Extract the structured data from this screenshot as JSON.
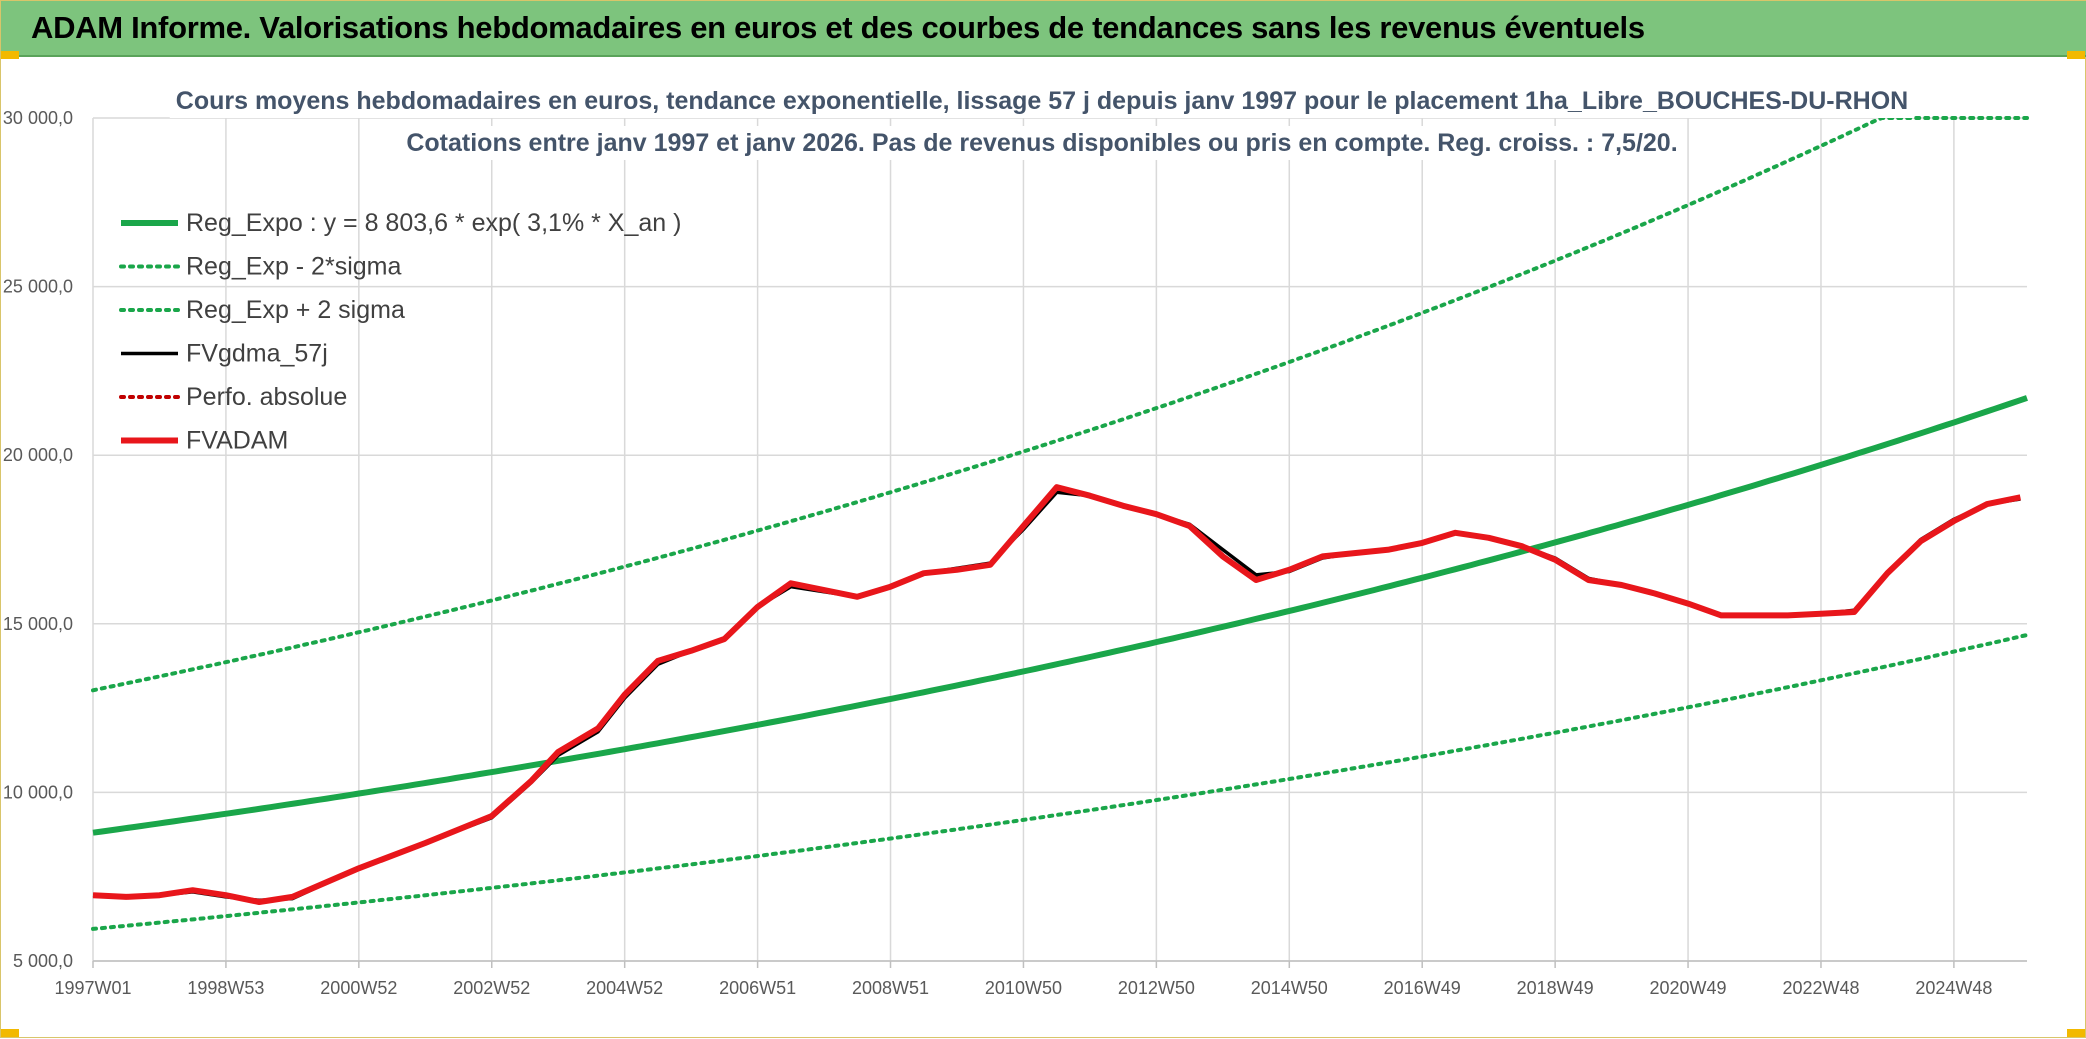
{
  "banner": {
    "title": "ADAM Informe. Valorisations hebdomadaires en euros et des courbes de tendances sans les revenus éventuels"
  },
  "colors": {
    "banner_bg": "#7dc47d",
    "trend": "#1aa64a",
    "fv": "#000000",
    "adam": "#e8161b",
    "perfo": "#c00000"
  },
  "chart_data": {
    "type": "line",
    "title": "Cours moyens hebdomadaires en euros, tendance exponentielle, lissage 57 j depuis janv 1997 pour le placement 1ha_Libre_BOUCHES-DU-RHON",
    "subtitle": "Cotations entre janv 1997 et janv 2026. Pas de revenus disponibles ou pris en compte. Reg. croiss. : 7,5/20.",
    "xlabel": "",
    "ylabel": "",
    "x_range": [
      1997.0,
      2026.1
    ],
    "ylim": [
      5000,
      30000
    ],
    "yticks": [
      5000,
      10000,
      15000,
      20000,
      25000,
      30000
    ],
    "ytick_labels": [
      "5 000,0",
      "10 000,0",
      "15 000,0",
      "20 000,0",
      "25 000,0",
      "30 000,0"
    ],
    "xticks": [
      {
        "label": "1997W01",
        "x": 1997.0
      },
      {
        "label": "1998W53",
        "x": 1999.0
      },
      {
        "label": "2000W52",
        "x": 2001.0
      },
      {
        "label": "2002W52",
        "x": 2003.0
      },
      {
        "label": "2004W52",
        "x": 2005.0
      },
      {
        "label": "2006W51",
        "x": 2007.0
      },
      {
        "label": "2008W51",
        "x": 2009.0
      },
      {
        "label": "2010W50",
        "x": 2011.0
      },
      {
        "label": "2012W50",
        "x": 2013.0
      },
      {
        "label": "2014W50",
        "x": 2015.0
      },
      {
        "label": "2016W49",
        "x": 2017.0
      },
      {
        "label": "2018W49",
        "x": 2019.0
      },
      {
        "label": "2020W49",
        "x": 2021.0
      },
      {
        "label": "2022W48",
        "x": 2023.0
      },
      {
        "label": "2024W48",
        "x": 2025.0
      }
    ],
    "grid": true,
    "legend_position": "top-left",
    "trend_model": {
      "a": 8803.6,
      "rate": 0.031,
      "x0": 1997.0,
      "sigma_low_factor": 0.676,
      "sigma_high_factor": 1.48
    },
    "series": [
      {
        "name": "Reg_Expo : y = 8 803,6 * exp( 3,1% *  X_an )",
        "style": "solid-thick",
        "color": "#1aa64a",
        "kind": "trend"
      },
      {
        "name": "Reg_Exp - 2*sigma",
        "style": "dotted",
        "color": "#1aa64a",
        "kind": "trend_low"
      },
      {
        "name": "Reg_Exp + 2 sigma",
        "style": "dotted",
        "color": "#1aa64a",
        "kind": "trend_high"
      },
      {
        "name": "FVgdma_57j",
        "style": "solid",
        "color": "#000000",
        "kind": "data",
        "x": [
          1997.0,
          1997.5,
          1998.0,
          1998.5,
          1999.0,
          1999.5,
          2000.0,
          2001.0,
          2002.0,
          2003.0,
          2003.6,
          2004.0,
          2004.6,
          2005.0,
          2005.5,
          2006.0,
          2006.5,
          2007.0,
          2007.5,
          2008.0,
          2008.5,
          2009.0,
          2009.5,
          2010.0,
          2010.5,
          2011.0,
          2011.5,
          2012.0,
          2012.5,
          2013.0,
          2013.5,
          2014.0,
          2014.5,
          2015.0,
          2015.5,
          2016.0,
          2016.5,
          2017.0,
          2017.5,
          2018.0,
          2018.5,
          2019.0,
          2019.5,
          2020.0,
          2020.5,
          2021.0,
          2021.5,
          2022.0,
          2022.5,
          2023.0,
          2023.5,
          2024.0,
          2024.5,
          2025.0,
          2025.5,
          2026.0
        ],
        "values": [
          6950,
          6900,
          6950,
          7050,
          6900,
          6800,
          6850,
          7750,
          8500,
          9250,
          10300,
          11100,
          11800,
          12800,
          13800,
          14200,
          14550,
          15500,
          16100,
          15950,
          15800,
          16100,
          16500,
          16650,
          16800,
          17800,
          18900,
          18800,
          18500,
          18250,
          17950,
          17200,
          16450,
          16550,
          16950,
          17100,
          17200,
          17400,
          17700,
          17550,
          17300,
          16950,
          16350,
          16150,
          15900,
          15600,
          15250,
          15250,
          15250,
          15300,
          15400,
          16500,
          17500,
          18100,
          18550,
          18700
        ]
      },
      {
        "name": "Perfo. absolue",
        "style": "dotted",
        "color": "#c00000",
        "kind": "data_dotted"
      },
      {
        "name": "FVADAM",
        "style": "solid-thick",
        "color": "#e8161b",
        "kind": "data",
        "x": [
          1997.0,
          1997.5,
          1998.0,
          1998.5,
          1999.0,
          1999.5,
          2000.0,
          2001.0,
          2002.0,
          2003.0,
          2003.6,
          2004.0,
          2004.6,
          2005.0,
          2005.5,
          2006.0,
          2006.5,
          2007.0,
          2007.5,
          2008.0,
          2008.5,
          2009.0,
          2009.5,
          2010.0,
          2010.5,
          2011.0,
          2011.5,
          2012.0,
          2012.5,
          2013.0,
          2013.5,
          2014.0,
          2014.5,
          2015.0,
          2015.5,
          2016.0,
          2016.5,
          2017.0,
          2017.5,
          2018.0,
          2018.5,
          2019.0,
          2019.5,
          2020.0,
          2020.5,
          2021.0,
          2021.5,
          2022.0,
          2022.5,
          2023.0,
          2023.5,
          2024.0,
          2024.5,
          2025.0,
          2025.5,
          2026.0
        ],
        "values": [
          6950,
          6900,
          6950,
          7100,
          6950,
          6750,
          6900,
          7750,
          8500,
          9300,
          10350,
          11200,
          11900,
          12900,
          13900,
          14200,
          14550,
          15500,
          16200,
          16000,
          15800,
          16100,
          16500,
          16600,
          16750,
          17900,
          19050,
          18800,
          18500,
          18250,
          17900,
          17000,
          16300,
          16600,
          17000,
          17100,
          17200,
          17400,
          17700,
          17550,
          17300,
          16900,
          16300,
          16150,
          15900,
          15600,
          15250,
          15250,
          15250,
          15300,
          15350,
          16500,
          17450,
          18050,
          18550,
          18750
        ]
      }
    ]
  }
}
